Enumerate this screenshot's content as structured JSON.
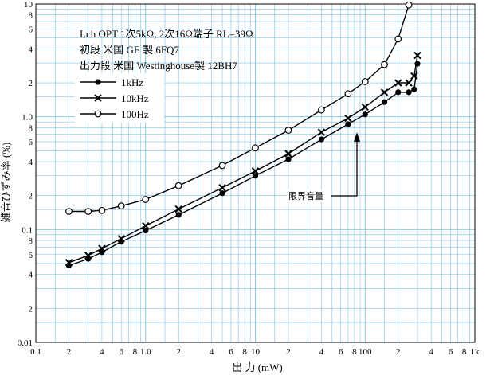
{
  "chart_data": {
    "type": "line",
    "x_scale": "log",
    "y_scale": "log",
    "xlim": [
      0.1,
      1000
    ],
    "ylim": [
      0.01,
      10
    ],
    "grid": true,
    "legend_position": "upper-left",
    "xlabel": "出 力 (mW)",
    "ylabel": "雑音ひずみ率 (%)",
    "annotations": [
      "Lch OPT 1次5kΩ, 2次16Ω端子 RL=39Ω",
      "初段 米国 GE 製 6FQ7",
      "出力段 米国 Westinghouse製 12BH7"
    ],
    "callout": "限界音量",
    "x_tick_labels": [
      {
        "v": 0.1,
        "t": "0.1"
      },
      {
        "v": 0.2,
        "t": "2"
      },
      {
        "v": 0.4,
        "t": "4"
      },
      {
        "v": 0.6,
        "t": "6"
      },
      {
        "v": 0.8,
        "t": "8"
      },
      {
        "v": 1,
        "t": "1.0"
      },
      {
        "v": 2,
        "t": "2"
      },
      {
        "v": 4,
        "t": "4"
      },
      {
        "v": 6,
        "t": "6"
      },
      {
        "v": 8,
        "t": "8"
      },
      {
        "v": 10,
        "t": "10"
      },
      {
        "v": 20,
        "t": "2"
      },
      {
        "v": 40,
        "t": "4"
      },
      {
        "v": 60,
        "t": "6"
      },
      {
        "v": 80,
        "t": "8"
      },
      {
        "v": 100,
        "t": "100"
      },
      {
        "v": 200,
        "t": "2"
      },
      {
        "v": 400,
        "t": "4"
      },
      {
        "v": 600,
        "t": "6"
      },
      {
        "v": 800,
        "t": "8"
      },
      {
        "v": 1000,
        "t": "1k"
      }
    ],
    "y_tick_labels": [
      {
        "v": 0.01,
        "t": "0.01"
      },
      {
        "v": 0.02,
        "t": "2"
      },
      {
        "v": 0.04,
        "t": "4"
      },
      {
        "v": 0.06,
        "t": "6"
      },
      {
        "v": 0.08,
        "t": "8"
      },
      {
        "v": 0.1,
        "t": "0.1"
      },
      {
        "v": 0.2,
        "t": "2"
      },
      {
        "v": 0.4,
        "t": "4"
      },
      {
        "v": 0.6,
        "t": "6"
      },
      {
        "v": 0.8,
        "t": "8"
      },
      {
        "v": 1,
        "t": "1.0"
      },
      {
        "v": 2,
        "t": "2"
      },
      {
        "v": 4,
        "t": "4"
      },
      {
        "v": 6,
        "t": "6"
      },
      {
        "v": 8,
        "t": "8"
      },
      {
        "v": 10,
        "t": "10"
      }
    ],
    "series": [
      {
        "name": "1kHz",
        "marker": "filled-circle",
        "color": "#000000",
        "x": [
          0.2,
          0.3,
          0.4,
          0.6,
          1.0,
          2,
          5,
          10,
          20,
          40,
          70,
          100,
          150,
          200,
          250,
          280,
          300
        ],
        "y": [
          0.048,
          0.055,
          0.063,
          0.078,
          0.098,
          0.135,
          0.21,
          0.3,
          0.42,
          0.63,
          0.86,
          1.05,
          1.35,
          1.65,
          1.65,
          1.75,
          2.95
        ]
      },
      {
        "name": "10kHz",
        "marker": "x",
        "color": "#000000",
        "x": [
          0.2,
          0.3,
          0.4,
          0.6,
          1.0,
          2,
          5,
          10,
          20,
          40,
          70,
          100,
          150,
          200,
          250,
          280,
          300
        ],
        "y": [
          0.051,
          0.059,
          0.068,
          0.083,
          0.108,
          0.152,
          0.235,
          0.33,
          0.47,
          0.73,
          0.97,
          1.22,
          1.65,
          2.0,
          2.0,
          2.3,
          3.5
        ]
      },
      {
        "name": "100Hz",
        "marker": "open-circle",
        "color": "#000000",
        "x": [
          0.2,
          0.3,
          0.4,
          0.6,
          1.0,
          2,
          5,
          10,
          20,
          40,
          70,
          100,
          150,
          200,
          250
        ],
        "y": [
          0.145,
          0.145,
          0.148,
          0.162,
          0.185,
          0.245,
          0.37,
          0.53,
          0.76,
          1.15,
          1.6,
          2.05,
          2.9,
          4.9,
          9.8
        ]
      }
    ]
  }
}
